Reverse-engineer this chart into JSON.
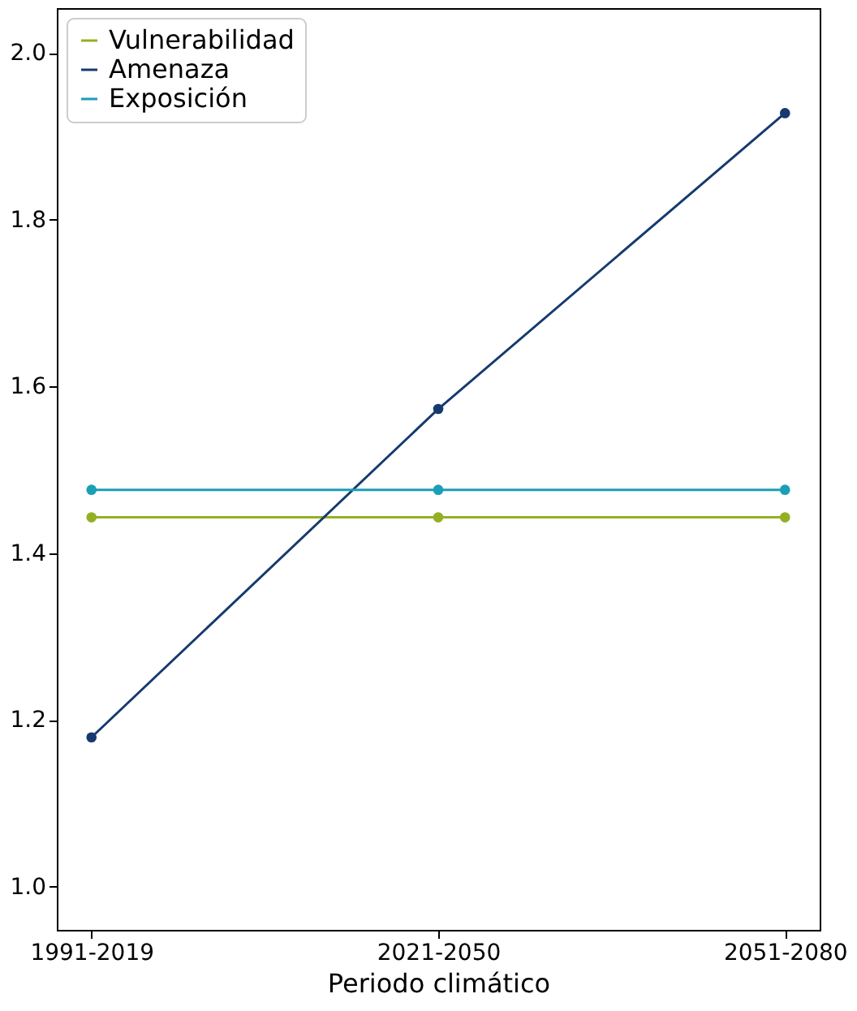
{
  "chart_data": {
    "type": "line",
    "xlabel": "Periodo climático",
    "categories": [
      "1991-2019",
      "2021-2050",
      "2051-2080"
    ],
    "series": [
      {
        "name": "Vulnerabilidad",
        "color": "#93b023",
        "values": [
          1.443,
          1.443,
          1.443
        ]
      },
      {
        "name": "Amenaza",
        "color": "#163a6e",
        "values": [
          1.179,
          1.573,
          1.928
        ]
      },
      {
        "name": "Exposición",
        "color": "#1a9fb5",
        "values": [
          1.476,
          1.476,
          1.476
        ]
      }
    ],
    "ylim": [
      0.948,
      2.054
    ],
    "yticks": [
      {
        "value": 1.0,
        "label": "1.0"
      },
      1.2,
      1.4,
      1.6,
      1.8,
      {
        "value": 2.0,
        "label": "2.0"
      }
    ],
    "grid": false,
    "legend": "top left",
    "marker": "circle",
    "line_style": "solid"
  }
}
